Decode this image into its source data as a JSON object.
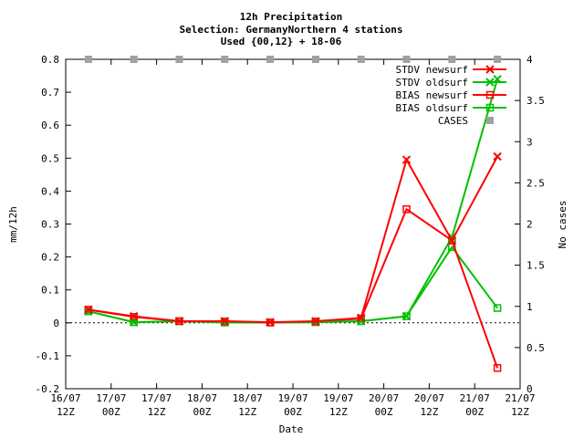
{
  "chart_data": {
    "type": "line",
    "title": [
      "12h Precipitation",
      "Selection: GermanyNorthern      4 stations",
      "Used {00,12} + 18-06"
    ],
    "xlabel": "Date",
    "ylabel": "mm/12h",
    "y2label": "No cases",
    "ylim": [
      -0.2,
      0.8
    ],
    "y2lim": [
      0,
      4
    ],
    "yticks": [
      "-0.2",
      "-0.1",
      "0",
      "0.1",
      "0.2",
      "0.3",
      "0.4",
      "0.5",
      "0.6",
      "0.7",
      "0.8"
    ],
    "y2ticks": [
      "0",
      "0.5",
      "1",
      "1.5",
      "2",
      "2.5",
      "3",
      "3.5",
      "4"
    ],
    "xticks": [
      {
        "line1": "16/07",
        "line2": "12Z"
      },
      {
        "line1": "17/07",
        "line2": "00Z"
      },
      {
        "line1": "17/07",
        "line2": "12Z"
      },
      {
        "line1": "18/07",
        "line2": "00Z"
      },
      {
        "line1": "18/07",
        "line2": "12Z"
      },
      {
        "line1": "19/07",
        "line2": "00Z"
      },
      {
        "line1": "19/07",
        "line2": "12Z"
      },
      {
        "line1": "20/07",
        "line2": "00Z"
      },
      {
        "line1": "20/07",
        "line2": "12Z"
      },
      {
        "line1": "21/07",
        "line2": "00Z"
      },
      {
        "line1": "21/07",
        "line2": "12Z"
      }
    ],
    "x_hours": [
      6,
      18,
      30,
      42,
      54,
      66,
      78,
      90,
      102,
      114
    ],
    "x_range_hours": [
      0,
      120
    ],
    "series": [
      {
        "name": "STDV newsurf",
        "color": "#ff0000",
        "marker": "x",
        "axis": "y1",
        "values": [
          0.04,
          0.02,
          0.005,
          0.005,
          0.002,
          0.005,
          0.015,
          0.495,
          0.25,
          0.505
        ]
      },
      {
        "name": "STDV oldsurf",
        "color": "#00c000",
        "marker": "x",
        "axis": "y1",
        "values": [
          0.035,
          0.002,
          0.005,
          0.002,
          0.002,
          0.002,
          0.005,
          0.02,
          0.26,
          0.74
        ]
      },
      {
        "name": "BIAS newsurf",
        "color": "#ff0000",
        "marker": "square",
        "axis": "y1",
        "values": [
          0.04,
          0.018,
          0.005,
          0.004,
          0.001,
          0.004,
          0.013,
          0.345,
          0.25,
          -0.137
        ]
      },
      {
        "name": "BIAS oldsurf",
        "color": "#00c000",
        "marker": "square",
        "axis": "y1",
        "values": [
          0.035,
          0.002,
          0.005,
          0.001,
          0.001,
          0.002,
          0.005,
          0.02,
          0.23,
          0.045
        ]
      },
      {
        "name": "CASES",
        "color": "#a0a0a0",
        "marker": "filled-square",
        "axis": "y2",
        "values": [
          4,
          4,
          4,
          4,
          4,
          4,
          4,
          4,
          4,
          4
        ]
      }
    ],
    "legend_position": "top-right"
  }
}
